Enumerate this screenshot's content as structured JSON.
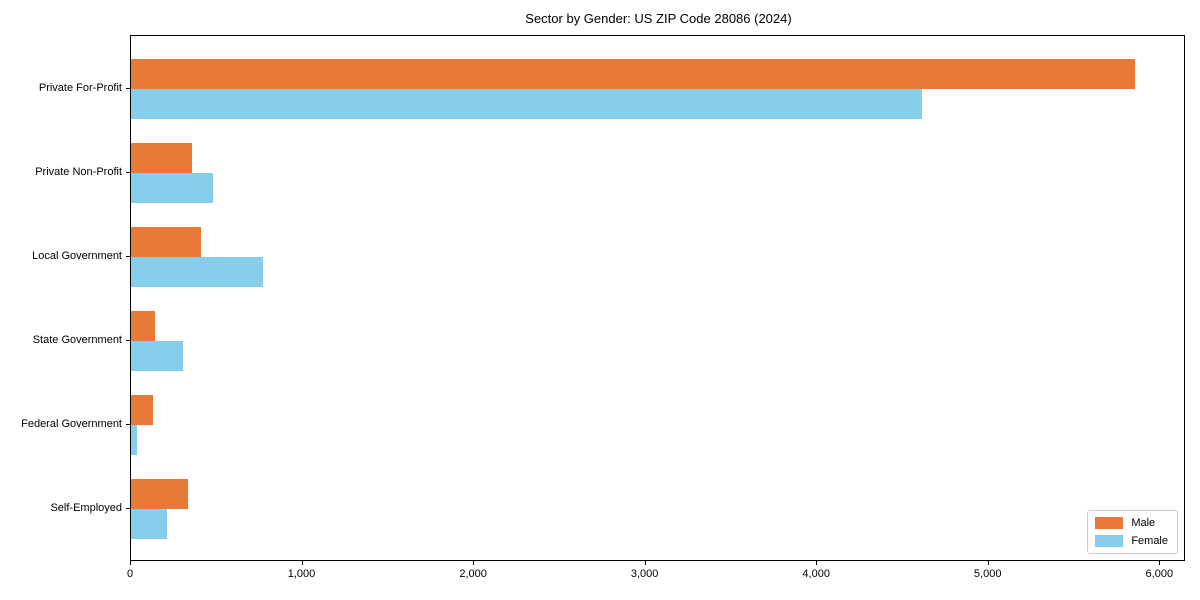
{
  "chart_data": {
    "type": "bar",
    "orientation": "horizontal",
    "title": "Sector by Gender: US ZIP Code 28086 (2024)",
    "categories": [
      "Private For-Profit",
      "Private Non-Profit",
      "Local Government",
      "State Government",
      "Federal Government",
      "Self-Employed"
    ],
    "series": [
      {
        "name": "Male",
        "color": "#e87938",
        "values": [
          5855,
          355,
          405,
          137,
          127,
          330
        ]
      },
      {
        "name": "Female",
        "color": "#87ceeb",
        "values": [
          4610,
          480,
          770,
          300,
          34,
          207
        ]
      }
    ],
    "xlabel": "",
    "ylabel": "",
    "xlim": [
      0,
      6150
    ],
    "x_ticks": [
      0,
      1000,
      2000,
      3000,
      4000,
      5000,
      6000
    ],
    "x_tick_labels": [
      "0",
      "1,000",
      "2,000",
      "3,000",
      "4,000",
      "5,000",
      "6,000"
    ],
    "grid": false,
    "legend_position": "lower-right",
    "axis_color": "#000000",
    "background_color": "#ffffff"
  }
}
